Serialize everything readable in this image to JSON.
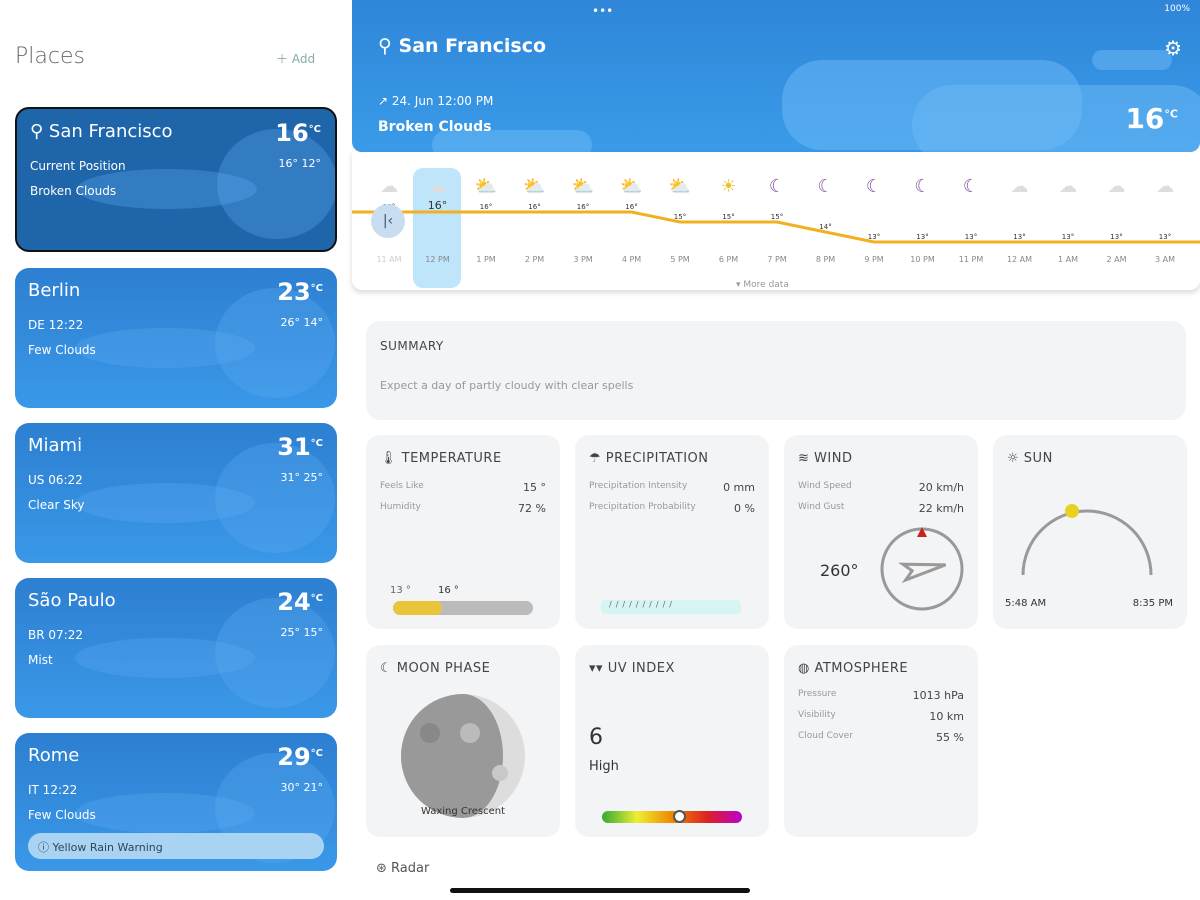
{
  "status": {
    "battery": "100%"
  },
  "sidebar": {
    "title": "Places",
    "add_label": "Add",
    "places": [
      {
        "name": "San Francisco",
        "line1": "Current Position",
        "line2": "Broken Clouds",
        "temp": "16",
        "high": "16°",
        "low": "12°"
      },
      {
        "name": "Berlin",
        "line1": "DE  12:22",
        "line2": "Few Clouds",
        "temp": "23",
        "high": "26°",
        "low": "14°"
      },
      {
        "name": "Miami",
        "line1": "US  06:22",
        "line2": "Clear Sky",
        "temp": "31",
        "high": "31°",
        "low": "25°"
      },
      {
        "name": "São Paulo",
        "line1": "BR  07:22",
        "line2": "Mist",
        "temp": "24",
        "high": "25°",
        "low": "15°"
      },
      {
        "name": "Rome",
        "line1": "IT  12:22",
        "line2": "Few Clouds",
        "temp": "29",
        "high": "30°",
        "low": "21°",
        "warning": "Yellow Rain Warning"
      }
    ]
  },
  "header": {
    "city": "San Francisco",
    "datetime": "24. Jun 12:00 PM",
    "condition": "Broken Clouds",
    "temp": "16",
    "unit": "°C"
  },
  "hourly": {
    "more_label": "More data",
    "items": [
      {
        "t": "11 AM",
        "v": 16,
        "i": "cloud"
      },
      {
        "t": "12 PM",
        "v": 16,
        "i": "cloud"
      },
      {
        "t": "1 PM",
        "v": 16,
        "i": "sun-cloud"
      },
      {
        "t": "2 PM",
        "v": 16,
        "i": "sun-cloud"
      },
      {
        "t": "3 PM",
        "v": 16,
        "i": "sun-cloud"
      },
      {
        "t": "4 PM",
        "v": 16,
        "i": "sun-cloud"
      },
      {
        "t": "5 PM",
        "v": 15,
        "i": "sun-cloud"
      },
      {
        "t": "6 PM",
        "v": 15,
        "i": "sun"
      },
      {
        "t": "7 PM",
        "v": 15,
        "i": "moon"
      },
      {
        "t": "8 PM",
        "v": 14,
        "i": "moon"
      },
      {
        "t": "9 PM",
        "v": 13,
        "i": "moon"
      },
      {
        "t": "10 PM",
        "v": 13,
        "i": "moon-cloud"
      },
      {
        "t": "11 PM",
        "v": 13,
        "i": "moon-cloud"
      },
      {
        "t": "12 AM",
        "v": 13,
        "i": "cloud"
      },
      {
        "t": "1 AM",
        "v": 13,
        "i": "cloud"
      },
      {
        "t": "2 AM",
        "v": 13,
        "i": "cloud"
      },
      {
        "t": "3 AM",
        "v": 13,
        "i": "cloud"
      }
    ]
  },
  "summary": {
    "title": "SUMMARY",
    "text": "Expect a day of partly cloudy with clear spells"
  },
  "temperature": {
    "title": "TEMPERATURE",
    "feels_label": "Feels Like",
    "feels": "15 °",
    "humidity_label": "Humidity",
    "humidity": "72 %",
    "min": "13 °",
    "current": "16 °",
    "fraction": 0.35
  },
  "precipitation": {
    "title": "PRECIPITATION",
    "intensity_label": "Precipitation Intensity",
    "intensity": "0 mm",
    "prob_label": "Precipitation Probability",
    "prob": "0 %"
  },
  "wind": {
    "title": "WIND",
    "speed_label": "Wind Speed",
    "speed": "20 km/h",
    "gust_label": "Wind Gust",
    "gust": "22 km/h",
    "direction": "260°",
    "deg": 260
  },
  "sun": {
    "title": "SUN",
    "sunrise": "5:48 AM",
    "sunset": "8:35 PM"
  },
  "moon": {
    "title": "MOON PHASE",
    "phase": "Waxing Crescent"
  },
  "uv": {
    "title": "UV INDEX",
    "value": "6",
    "label": "High",
    "fraction": 0.55
  },
  "atmosphere": {
    "title": "ATMOSPHERE",
    "pressure_label": "Pressure",
    "pressure": "1013 hPa",
    "visibility_label": "Visibility",
    "visibility": "10 km",
    "cloud_label": "Cloud Cover",
    "cloud": "55 %"
  },
  "radar_label": "Radar"
}
